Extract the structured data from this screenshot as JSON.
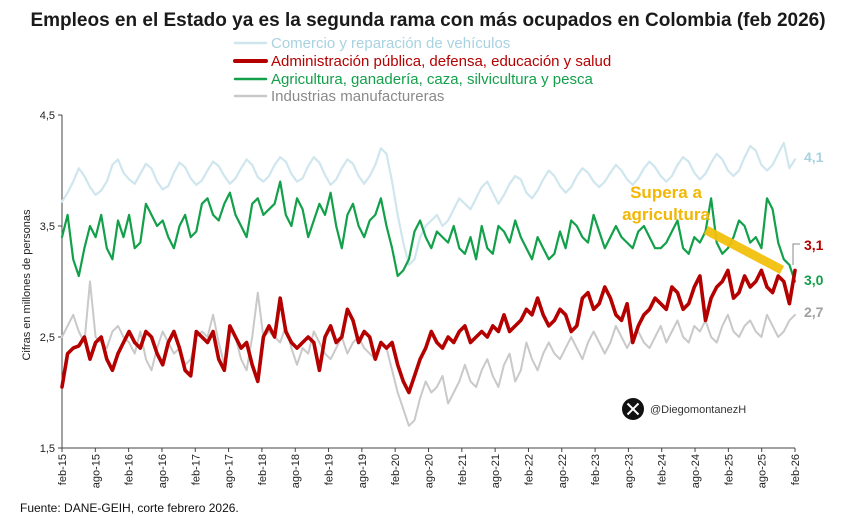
{
  "chart_data": {
    "type": "line",
    "title": "Empleos en el Estado ya es la segunda rama con más ocupados en Colombia (feb 2026)",
    "ylabel": "Cifras en millones de personas",
    "xlabel": "",
    "ylim": [
      1.5,
      4.5
    ],
    "yticks": [
      "1,5",
      "2,5",
      "3,5",
      "4,5"
    ],
    "grid": false,
    "legend_position": "top",
    "x_ticks": [
      "feb-15",
      "ago-15",
      "feb-16",
      "ago-16",
      "feb-17",
      "ago-17",
      "feb-18",
      "ago-18",
      "feb-19",
      "ago-19",
      "feb-20",
      "ago-20",
      "feb-21",
      "ago-21",
      "feb-22",
      "ago-22",
      "feb-23",
      "ago-23",
      "feb-24",
      "ago-24",
      "feb-25",
      "ago-25",
      "feb-26"
    ],
    "series": [
      {
        "name": "Comercio y reparación de vehículos",
        "color": "#cfe6ee",
        "end_label": "4,1",
        "values": [
          3.72,
          3.8,
          3.9,
          4.02,
          3.95,
          3.85,
          3.78,
          3.82,
          3.9,
          4.05,
          4.1,
          3.98,
          3.92,
          3.88,
          3.97,
          4.06,
          4.02,
          3.9,
          3.83,
          3.86,
          3.98,
          4.07,
          4.03,
          3.93,
          3.87,
          3.91,
          4.0,
          4.08,
          4.04,
          3.95,
          3.88,
          3.93,
          4.02,
          4.1,
          4.05,
          3.94,
          3.9,
          3.95,
          4.05,
          4.12,
          4.08,
          3.97,
          3.9,
          3.93,
          4.04,
          4.12,
          4.07,
          3.96,
          3.87,
          3.92,
          4.02,
          4.1,
          4.06,
          3.95,
          3.88,
          3.95,
          4.05,
          4.2,
          4.15,
          3.9,
          3.6,
          3.35,
          3.15,
          3.2,
          3.4,
          3.5,
          3.55,
          3.6,
          3.5,
          3.55,
          3.65,
          3.75,
          3.7,
          3.65,
          3.75,
          3.85,
          3.9,
          3.8,
          3.7,
          3.78,
          3.88,
          3.95,
          3.92,
          3.8,
          3.75,
          3.82,
          3.92,
          4.0,
          3.95,
          3.86,
          3.8,
          3.85,
          3.95,
          4.02,
          3.98,
          3.9,
          3.85,
          3.9,
          3.98,
          4.05,
          4.0,
          3.92,
          3.87,
          3.93,
          4.02,
          4.08,
          4.03,
          3.95,
          3.9,
          3.95,
          4.05,
          4.12,
          4.08,
          3.98,
          3.92,
          3.97,
          4.07,
          4.15,
          4.1,
          4.0,
          3.95,
          4.0,
          4.12,
          4.22,
          4.18,
          4.05,
          4.0,
          4.05,
          4.15,
          4.25,
          4.02,
          4.1
        ]
      },
      {
        "name": "Administración pública, defensa, educación y salud",
        "color": "#b50000",
        "end_label": "3,1",
        "values": [
          2.05,
          2.35,
          2.4,
          2.42,
          2.5,
          2.3,
          2.45,
          2.5,
          2.3,
          2.2,
          2.35,
          2.45,
          2.55,
          2.45,
          2.4,
          2.55,
          2.5,
          2.35,
          2.25,
          2.45,
          2.55,
          2.4,
          2.2,
          2.15,
          2.55,
          2.5,
          2.45,
          2.55,
          2.3,
          2.2,
          2.6,
          2.5,
          2.4,
          2.45,
          2.25,
          2.1,
          2.5,
          2.6,
          2.5,
          2.85,
          2.55,
          2.45,
          2.4,
          2.45,
          2.5,
          2.45,
          2.2,
          2.5,
          2.6,
          2.45,
          2.5,
          2.75,
          2.65,
          2.45,
          2.55,
          2.5,
          2.3,
          2.45,
          2.4,
          2.45,
          2.25,
          2.1,
          2.0,
          2.15,
          2.3,
          2.4,
          2.55,
          2.45,
          2.4,
          2.5,
          2.45,
          2.55,
          2.6,
          2.45,
          2.5,
          2.55,
          2.5,
          2.6,
          2.55,
          2.7,
          2.55,
          2.6,
          2.65,
          2.75,
          2.7,
          2.85,
          2.7,
          2.6,
          2.65,
          2.75,
          2.7,
          2.55,
          2.6,
          2.85,
          2.9,
          2.75,
          2.8,
          2.95,
          2.85,
          2.7,
          2.65,
          2.8,
          2.45,
          2.6,
          2.7,
          2.75,
          2.85,
          2.8,
          2.75,
          2.95,
          2.9,
          2.75,
          2.8,
          2.95,
          3.05,
          2.65,
          2.85,
          2.95,
          3.0,
          3.1,
          2.85,
          2.9,
          3.05,
          2.95,
          3.0,
          3.1,
          2.95,
          2.9,
          3.05,
          3.0,
          2.8,
          3.1
        ]
      },
      {
        "name": "Agricultura, ganadería, caza, silvicultura y pesca",
        "color": "#13a04a",
        "end_label": "3,0",
        "values": [
          3.4,
          3.6,
          3.2,
          3.05,
          3.3,
          3.5,
          3.4,
          3.6,
          3.3,
          3.2,
          3.55,
          3.4,
          3.6,
          3.3,
          3.35,
          3.7,
          3.6,
          3.5,
          3.55,
          3.4,
          3.3,
          3.5,
          3.6,
          3.4,
          3.45,
          3.7,
          3.75,
          3.6,
          3.55,
          3.7,
          3.8,
          3.6,
          3.5,
          3.4,
          3.7,
          3.75,
          3.6,
          3.65,
          3.7,
          3.9,
          3.6,
          3.5,
          3.75,
          3.65,
          3.4,
          3.55,
          3.7,
          3.6,
          3.8,
          3.5,
          3.3,
          3.6,
          3.7,
          3.5,
          3.4,
          3.55,
          3.6,
          3.75,
          3.5,
          3.3,
          3.05,
          3.1,
          3.2,
          3.45,
          3.55,
          3.4,
          3.3,
          3.45,
          3.4,
          3.35,
          3.5,
          3.3,
          3.25,
          3.4,
          3.2,
          3.5,
          3.3,
          3.25,
          3.5,
          3.45,
          3.35,
          3.55,
          3.4,
          3.3,
          3.2,
          3.4,
          3.3,
          3.2,
          3.25,
          3.45,
          3.3,
          3.55,
          3.5,
          3.4,
          3.35,
          3.6,
          3.45,
          3.3,
          3.4,
          3.5,
          3.4,
          3.35,
          3.3,
          3.45,
          3.5,
          3.4,
          3.3,
          3.3,
          3.35,
          3.45,
          3.55,
          3.3,
          3.25,
          3.4,
          3.35,
          3.45,
          3.75,
          3.35,
          3.25,
          3.3,
          3.4,
          3.55,
          3.5,
          3.35,
          3.4,
          3.3,
          3.75,
          3.65,
          3.35,
          3.2,
          3.15,
          3.0
        ]
      },
      {
        "name": "Industrias manufactureras",
        "color": "#c9c9c9",
        "end_label": "2,7",
        "values": [
          2.5,
          2.6,
          2.7,
          2.55,
          2.45,
          3.0,
          2.5,
          2.45,
          2.4,
          2.55,
          2.6,
          2.5,
          2.45,
          2.35,
          2.55,
          2.3,
          2.2,
          2.4,
          2.55,
          2.45,
          2.35,
          2.4,
          2.25,
          2.3,
          2.5,
          2.55,
          2.5,
          2.7,
          2.45,
          2.25,
          2.6,
          2.5,
          2.3,
          2.2,
          2.5,
          2.9,
          2.5,
          2.55,
          2.5,
          2.45,
          2.6,
          2.4,
          2.25,
          2.4,
          2.35,
          2.55,
          2.45,
          2.35,
          2.3,
          2.4,
          2.5,
          2.35,
          2.45,
          2.5,
          2.4,
          2.35,
          2.3,
          2.45,
          2.4,
          2.2,
          2.0,
          1.85,
          1.7,
          1.75,
          1.95,
          2.1,
          2.0,
          2.05,
          2.15,
          1.9,
          2.0,
          2.1,
          2.25,
          2.1,
          2.05,
          2.2,
          2.3,
          2.15,
          2.05,
          2.25,
          2.35,
          2.1,
          2.2,
          2.45,
          2.3,
          2.2,
          2.35,
          2.45,
          2.35,
          2.3,
          2.4,
          2.5,
          2.4,
          2.3,
          2.45,
          2.55,
          2.45,
          2.35,
          2.45,
          2.6,
          2.5,
          2.4,
          2.5,
          2.55,
          2.45,
          2.4,
          2.5,
          2.6,
          2.45,
          2.55,
          2.65,
          2.5,
          2.45,
          2.6,
          2.55,
          2.65,
          2.5,
          2.45,
          2.6,
          2.7,
          2.55,
          2.5,
          2.6,
          2.65,
          2.55,
          2.5,
          2.7,
          2.6,
          2.5,
          2.55,
          2.65,
          2.7
        ]
      }
    ],
    "annotations": [
      {
        "text_line1": "Supera a",
        "text_line2": "agricultura",
        "color": "#f2b705"
      }
    ]
  },
  "watermark": {
    "icon": "x-logo-icon",
    "handle": "@DiegomontanezH"
  },
  "source": "Fuente: DANE-GEIH, corte febrero 2026."
}
